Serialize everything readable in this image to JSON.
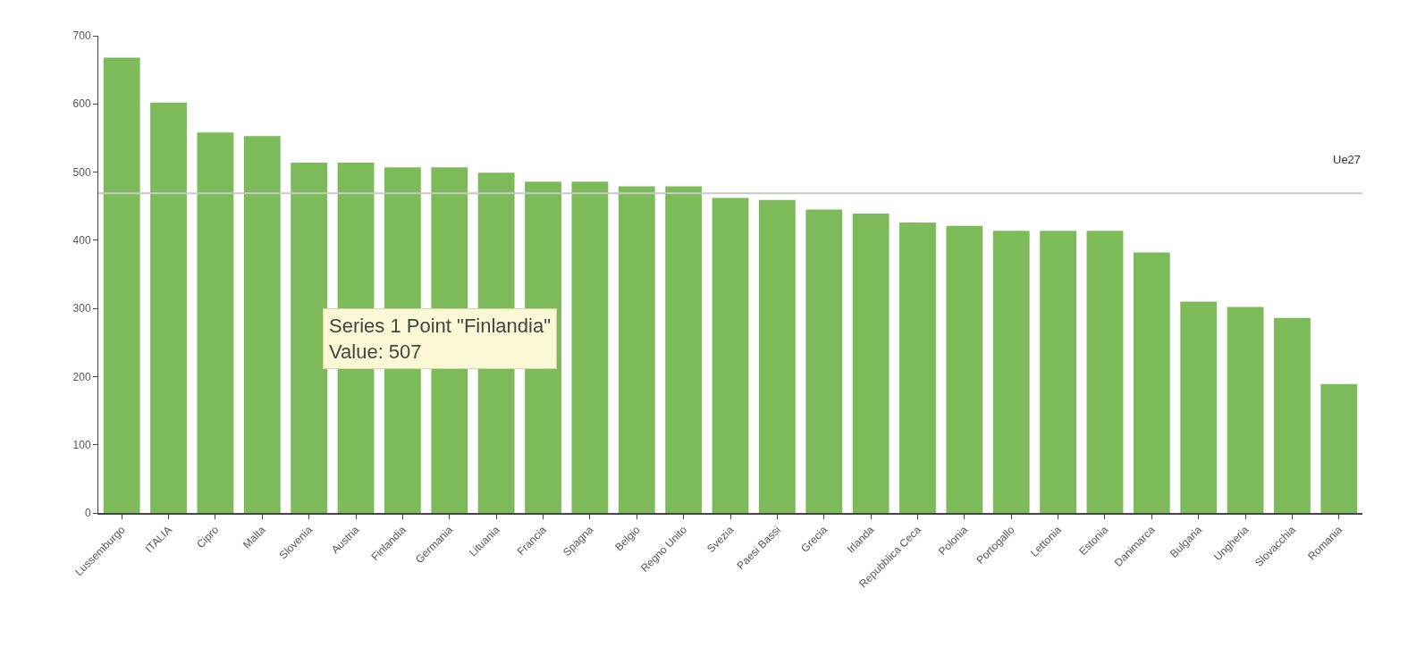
{
  "chart_data": {
    "type": "bar",
    "categories": [
      "Lussemburgo",
      "ITALIA",
      "Cipro",
      "Malta",
      "Slovenia",
      "Austria",
      "Finlandia",
      "Germania",
      "Lituania",
      "Francia",
      "Spagna",
      "Belgio",
      "Regno Unito",
      "Svezia",
      "Paesi Bassi",
      "Grecia",
      "Irlanda",
      "Repubblica Ceca",
      "Polonia",
      "Portogallo",
      "Lettonia",
      "Estonia",
      "Danimarca",
      "Bulgaria",
      "Ungheria",
      "Slovacchia",
      "Romania"
    ],
    "values": [
      668,
      602,
      558,
      553,
      514,
      514,
      507,
      507,
      499,
      486,
      486,
      479,
      479,
      462,
      459,
      445,
      439,
      426,
      421,
      414,
      414,
      414,
      382,
      310,
      302,
      286,
      189
    ],
    "color": "#7dbb5a",
    "ylim": [
      0,
      700
    ],
    "yticks": [
      0,
      100,
      200,
      300,
      400,
      500,
      600,
      700
    ],
    "ref_lines": [
      {
        "axis": "y",
        "value": 469,
        "label": "Ue27",
        "color": "#c8c8c8"
      }
    ],
    "annotations": [
      "Series 1 Point \"Finlandia\"\nValue: 507"
    ]
  }
}
